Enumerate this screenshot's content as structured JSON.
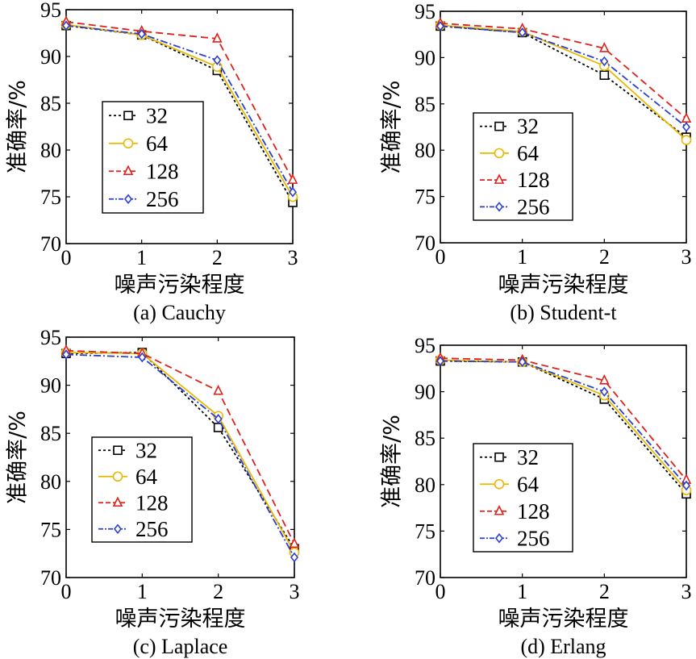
{
  "chart_data": [
    {
      "type": "line",
      "caption": "(a) Cauchy",
      "xlabel": "噪声污染程度",
      "ylabel": "准确率/%",
      "x": [
        0,
        1,
        2,
        3
      ],
      "xticks": [
        "0",
        "1",
        "2",
        "3"
      ],
      "yticks": [
        "70",
        "75",
        "80",
        "85",
        "90",
        "95"
      ],
      "xlim": [
        0,
        3
      ],
      "ylim": [
        70,
        95
      ],
      "legend_position": "middle-left",
      "series": [
        {
          "name": "32",
          "values": [
            93.3,
            92.3,
            88.5,
            74.4
          ],
          "color": "#000000",
          "dash": "3,3",
          "marker": "square"
        },
        {
          "name": "64",
          "values": [
            93.4,
            92.3,
            88.9,
            75.0
          ],
          "color": "#E8B800",
          "dash": "",
          "marker": "circle"
        },
        {
          "name": "128",
          "values": [
            93.7,
            92.7,
            91.9,
            76.8
          ],
          "color": "#E0201B",
          "dash": "9,5",
          "marker": "triangle"
        },
        {
          "name": "256",
          "values": [
            93.3,
            92.4,
            89.6,
            75.5
          ],
          "color": "#2B3FD1",
          "dash": "9,3,2,3",
          "marker": "diamond"
        }
      ]
    },
    {
      "type": "line",
      "caption": "(b) Student-t",
      "xlabel": "噪声污染程度",
      "ylabel": "准确率/%",
      "x": [
        0,
        1,
        2,
        3
      ],
      "xticks": [
        "0",
        "1",
        "2",
        "3"
      ],
      "yticks": [
        "70",
        "75",
        "80",
        "85",
        "90",
        "95"
      ],
      "xlim": [
        0,
        3
      ],
      "ylim": [
        70,
        95
      ],
      "legend_position": "lower-left",
      "series": [
        {
          "name": "32",
          "values": [
            93.4,
            92.7,
            88.1,
            81.4
          ],
          "color": "#000000",
          "dash": "3,3",
          "marker": "square"
        },
        {
          "name": "64",
          "values": [
            93.5,
            92.8,
            89.1,
            81.1
          ],
          "color": "#E8B800",
          "dash": "",
          "marker": "circle"
        },
        {
          "name": "128",
          "values": [
            93.7,
            93.1,
            91.0,
            83.4
          ],
          "color": "#E0201B",
          "dash": "9,5",
          "marker": "triangle"
        },
        {
          "name": "256",
          "values": [
            93.4,
            92.7,
            89.6,
            82.5
          ],
          "color": "#2B3FD1",
          "dash": "9,3,2,3",
          "marker": "diamond"
        }
      ]
    },
    {
      "type": "line",
      "caption": "(c) Laplace",
      "xlabel": "噪声污染程度",
      "ylabel": "准确率/%",
      "x": [
        0,
        1,
        2,
        3
      ],
      "xticks": [
        "0",
        "1",
        "2",
        "3"
      ],
      "yticks": [
        "70",
        "75",
        "80",
        "85",
        "90",
        "95"
      ],
      "xlim": [
        0,
        3
      ],
      "ylim": [
        70,
        95
      ],
      "legend_position": "lower-left",
      "series": [
        {
          "name": "32",
          "values": [
            93.3,
            93.4,
            85.6,
            73.0
          ],
          "color": "#000000",
          "dash": "3,3",
          "marker": "square"
        },
        {
          "name": "64",
          "values": [
            93.4,
            93.3,
            86.8,
            72.6
          ],
          "color": "#E8B800",
          "dash": "",
          "marker": "circle"
        },
        {
          "name": "128",
          "values": [
            93.6,
            93.3,
            89.4,
            73.5
          ],
          "color": "#E0201B",
          "dash": "9,5",
          "marker": "triangle"
        },
        {
          "name": "256",
          "values": [
            93.2,
            92.9,
            86.5,
            72.1
          ],
          "color": "#2B3FD1",
          "dash": "9,3,2,3",
          "marker": "diamond"
        }
      ]
    },
    {
      "type": "line",
      "caption": "(d) Erlang",
      "xlabel": "噪声污染程度",
      "ylabel": "准确率/%",
      "x": [
        0,
        1,
        2,
        3
      ],
      "xticks": [
        "0",
        "1",
        "2",
        "3"
      ],
      "yticks": [
        "70",
        "75",
        "80",
        "85",
        "90",
        "95"
      ],
      "xlim": [
        0,
        3
      ],
      "ylim": [
        70,
        95
      ],
      "legend_position": "lower-left",
      "series": [
        {
          "name": "32",
          "values": [
            93.3,
            93.2,
            89.2,
            79.0
          ],
          "color": "#000000",
          "dash": "3,3",
          "marker": "square"
        },
        {
          "name": "64",
          "values": [
            93.4,
            93.2,
            89.6,
            79.4
          ],
          "color": "#E8B800",
          "dash": "",
          "marker": "circle"
        },
        {
          "name": "128",
          "values": [
            93.6,
            93.4,
            91.2,
            80.5
          ],
          "color": "#E0201B",
          "dash": "9,5",
          "marker": "triangle"
        },
        {
          "name": "256",
          "values": [
            93.3,
            93.2,
            90.0,
            79.9
          ],
          "color": "#2B3FD1",
          "dash": "9,3,2,3",
          "marker": "diamond"
        }
      ]
    }
  ]
}
